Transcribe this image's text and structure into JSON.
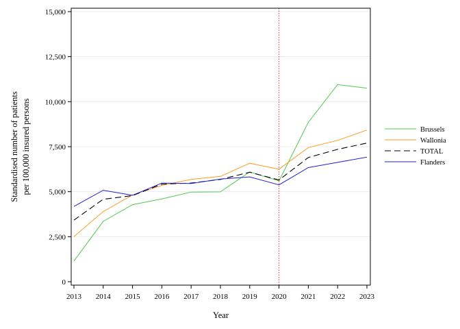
{
  "chart_data": {
    "type": "line",
    "title": "",
    "xlabel": "Year",
    "ylabel_lines": [
      "Standardised number of patients",
      "per 100,000 insured persons"
    ],
    "x": [
      2013,
      2014,
      2015,
      2016,
      2017,
      2018,
      2019,
      2020,
      2021,
      2022,
      2023
    ],
    "xlim": [
      2013,
      2023
    ],
    "ylim": [
      0,
      15000
    ],
    "y_ticks": [
      0,
      2500,
      5000,
      7500,
      10000,
      12500,
      15000
    ],
    "y_tick_labels": [
      "0",
      "2,500",
      "5,000",
      "7,500",
      "10,000",
      "12,500",
      "15,000"
    ],
    "grid": "horizontal",
    "legend_position": "right",
    "reference_line": {
      "x": 2020,
      "color": "#c0392b",
      "style": "dotted"
    },
    "series": [
      {
        "name": "Brussels",
        "color": "#4cc94c",
        "dash": "solid",
        "values": [
          1150,
          3350,
          4280,
          4600,
          4980,
          4990,
          6100,
          5600,
          8850,
          10950,
          10750
        ]
      },
      {
        "name": "Wallonia",
        "color": "#ff9a1f",
        "dash": "solid",
        "values": [
          2500,
          3900,
          4820,
          5350,
          5680,
          5850,
          6580,
          6250,
          7450,
          7850,
          8420
        ]
      },
      {
        "name": "TOTAL",
        "color": "#000000",
        "dash": "dashed",
        "values": [
          3420,
          4580,
          4780,
          5420,
          5480,
          5680,
          6080,
          5650,
          6900,
          7350,
          7700
        ]
      },
      {
        "name": "Flanders",
        "color": "#1f1fd6",
        "dash": "solid",
        "values": [
          4180,
          5080,
          4800,
          5480,
          5450,
          5700,
          5820,
          5380,
          6340,
          6630,
          6920
        ]
      }
    ]
  }
}
